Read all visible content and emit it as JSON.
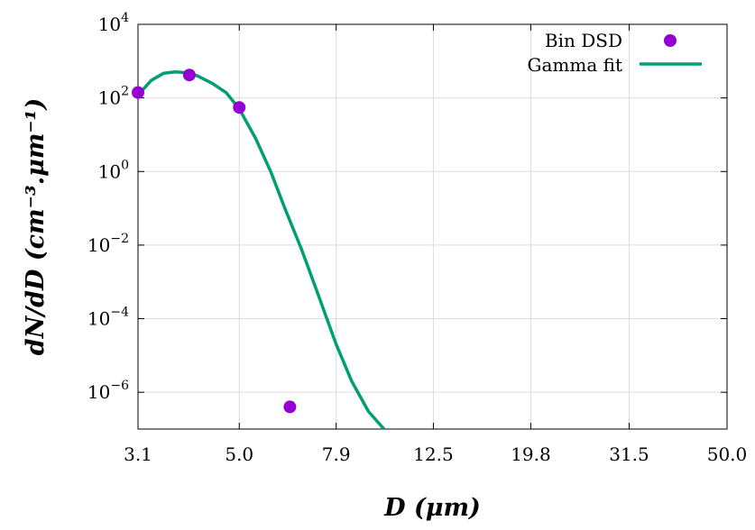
{
  "chart_data": {
    "type": "scatter",
    "title": "",
    "xlabel": "D (μm)",
    "ylabel": "dN/dD (cm⁻³.μm⁻¹)",
    "x_scale": "log",
    "y_scale": "log",
    "xlim": [
      3.1,
      50.0
    ],
    "ylim": [
      1e-07,
      10000
    ],
    "x_ticks": [
      "3.1",
      "5.0",
      "7.9",
      "12.5",
      "19.8",
      "31.5",
      "50.0"
    ],
    "x_tick_values": [
      3.1,
      5.0,
      7.9,
      12.5,
      19.8,
      31.5,
      50.0
    ],
    "y_tick_exponents": [
      -6,
      -4,
      -2,
      0,
      2,
      4
    ],
    "y_tick_labels": [
      {
        "base": "10",
        "exp": "−6"
      },
      {
        "base": "10",
        "exp": "−4"
      },
      {
        "base": "10",
        "exp": "−2"
      },
      {
        "base": "10",
        "exp": "0"
      },
      {
        "base": "10",
        "exp": "2"
      },
      {
        "base": "10",
        "exp": "4"
      }
    ],
    "grid": true,
    "legend_position": "top-right",
    "series": [
      {
        "name": "Bin DSD",
        "kind": "scatter",
        "color": "#9400d3",
        "x": [
          3.1,
          3.95,
          5.0,
          6.35
        ],
        "y": [
          140,
          420,
          55,
          4e-07
        ]
      },
      {
        "name": "Gamma fit",
        "kind": "line",
        "color": "#009e73",
        "x": [
          3.1,
          3.3,
          3.5,
          3.7,
          3.9,
          4.1,
          4.4,
          4.7,
          5.0,
          5.4,
          5.8,
          6.2,
          6.7,
          7.2,
          7.9,
          8.5,
          9.2,
          9.9
        ],
        "y": [
          120,
          300,
          470,
          510,
          480,
          400,
          250,
          140,
          50,
          8,
          1,
          0.1,
          0.008,
          0.0006,
          2e-05,
          2e-06,
          3e-07,
          1e-07
        ]
      }
    ]
  }
}
